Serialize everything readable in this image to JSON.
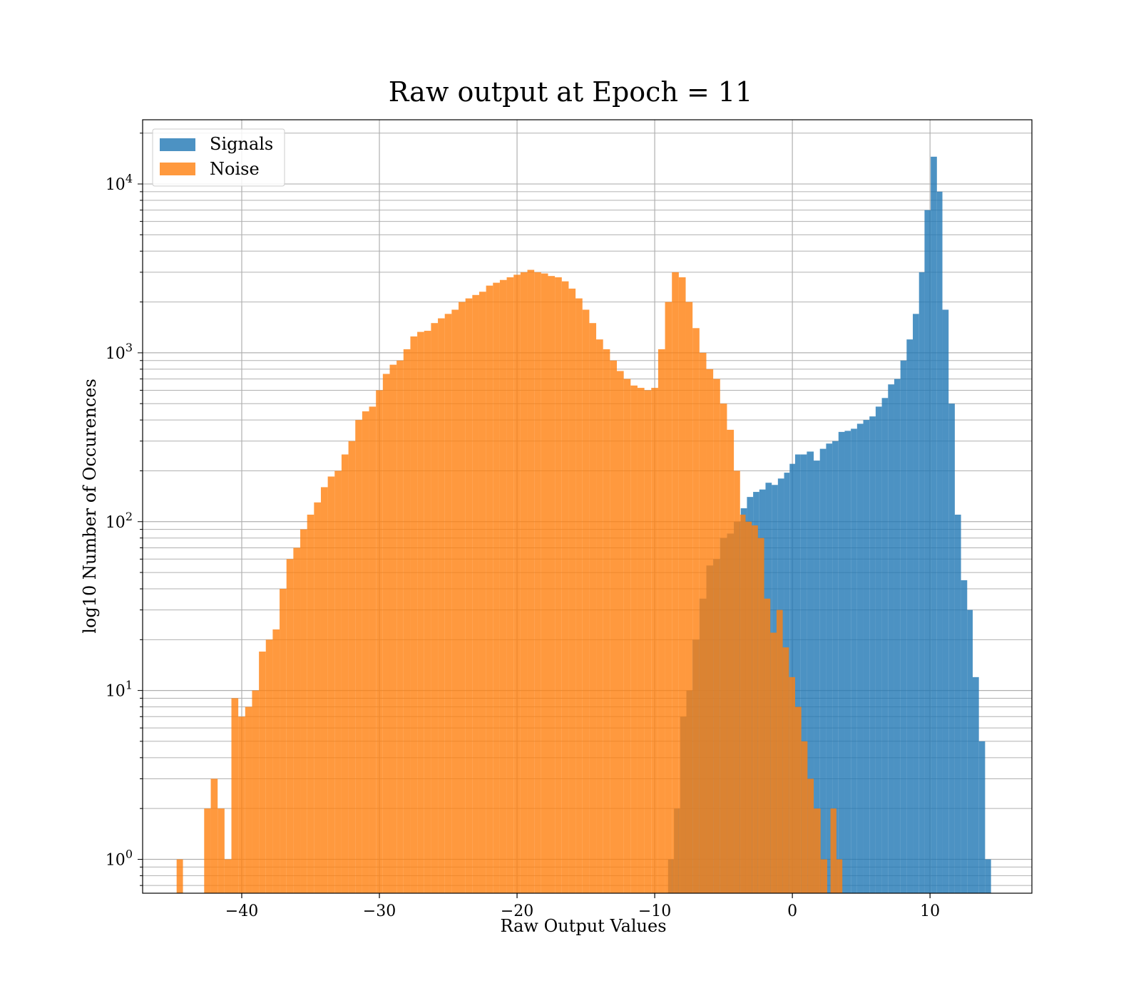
{
  "chart_data": {
    "type": "bar",
    "title": "Raw output at Epoch = 11",
    "xlabel": "Raw Output Values",
    "ylabel": "log10 Number of Occurences",
    "xlim": [
      -47.2,
      17.4
    ],
    "ylim": [
      0.63,
      24000
    ],
    "yscale": "log",
    "grid": "on (major and minor)",
    "legend_position": "top-left",
    "x_ticks": [
      -40,
      -30,
      -20,
      -10,
      0,
      10
    ],
    "x_tick_labels": [
      "−40",
      "−30",
      "−20",
      "−10",
      "0",
      "10"
    ],
    "y_ticks": [
      1,
      10,
      100,
      1000,
      10000
    ],
    "y_tick_labels": [
      {
        "base": "10",
        "exp": "0"
      },
      {
        "base": "10",
        "exp": "1"
      },
      {
        "base": "10",
        "exp": "2"
      },
      {
        "base": "10",
        "exp": "3"
      },
      {
        "base": "10",
        "exp": "4"
      }
    ],
    "series": [
      {
        "name": "Signals",
        "color": "#1f77b4",
        "bins": [
          [
            -8.8,
            1
          ],
          [
            -8.4,
            2
          ],
          [
            -7.9,
            7
          ],
          [
            -7.5,
            10
          ],
          [
            -7.0,
            20
          ],
          [
            -6.5,
            35
          ],
          [
            -6.0,
            55
          ],
          [
            -5.5,
            60
          ],
          [
            -5.0,
            80
          ],
          [
            -4.5,
            85
          ],
          [
            -4.0,
            100
          ],
          [
            -3.5,
            120
          ],
          [
            -3.1,
            140
          ],
          [
            -2.6,
            150
          ],
          [
            -2.2,
            155
          ],
          [
            -1.7,
            170
          ],
          [
            -1.3,
            165
          ],
          [
            -0.8,
            180
          ],
          [
            -0.4,
            195
          ],
          [
            0.0,
            220
          ],
          [
            0.4,
            250
          ],
          [
            0.8,
            250
          ],
          [
            1.3,
            260
          ],
          [
            1.8,
            230
          ],
          [
            2.2,
            270
          ],
          [
            2.7,
            290
          ],
          [
            3.1,
            300
          ],
          [
            3.6,
            340
          ],
          [
            4.0,
            345
          ],
          [
            4.5,
            355
          ],
          [
            4.9,
            380
          ],
          [
            5.4,
            400
          ],
          [
            5.8,
            420
          ],
          [
            6.3,
            480
          ],
          [
            6.7,
            540
          ],
          [
            7.2,
            650
          ],
          [
            7.6,
            700
          ],
          [
            8.1,
            900
          ],
          [
            8.5,
            1200
          ],
          [
            9.0,
            1700
          ],
          [
            9.4,
            3000
          ],
          [
            9.8,
            7000
          ],
          [
            10.3,
            14500
          ],
          [
            10.7,
            9000
          ],
          [
            11.1,
            1800
          ],
          [
            11.6,
            500
          ],
          [
            12.0,
            110
          ],
          [
            12.5,
            45
          ],
          [
            12.9,
            30
          ],
          [
            13.3,
            12
          ],
          [
            13.8,
            5
          ],
          [
            14.2,
            1
          ]
        ]
      },
      {
        "name": "Noise",
        "color": "#ff7f0e",
        "bins": [
          [
            -44.5,
            1
          ],
          [
            -42.5,
            2
          ],
          [
            -42.0,
            3
          ],
          [
            -41.5,
            2
          ],
          [
            -41.0,
            1
          ],
          [
            -40.5,
            9
          ],
          [
            -40.0,
            7
          ],
          [
            -39.5,
            8
          ],
          [
            -39.0,
            10
          ],
          [
            -38.5,
            17
          ],
          [
            -38.0,
            20
          ],
          [
            -37.5,
            23
          ],
          [
            -37.0,
            40
          ],
          [
            -36.5,
            60
          ],
          [
            -36.0,
            70
          ],
          [
            -35.5,
            90
          ],
          [
            -35.0,
            110
          ],
          [
            -34.5,
            130
          ],
          [
            -34.0,
            160
          ],
          [
            -33.5,
            185
          ],
          [
            -33.0,
            200
          ],
          [
            -32.5,
            250
          ],
          [
            -32.0,
            300
          ],
          [
            -31.5,
            400
          ],
          [
            -31.0,
            450
          ],
          [
            -30.5,
            480
          ],
          [
            -30.0,
            600
          ],
          [
            -29.5,
            750
          ],
          [
            -29.0,
            850
          ],
          [
            -28.5,
            900
          ],
          [
            -28.0,
            1050
          ],
          [
            -27.5,
            1250
          ],
          [
            -27.0,
            1330
          ],
          [
            -26.5,
            1350
          ],
          [
            -26.0,
            1500
          ],
          [
            -25.5,
            1600
          ],
          [
            -25.0,
            1700
          ],
          [
            -24.5,
            1800
          ],
          [
            -24.0,
            2000
          ],
          [
            -23.5,
            2100
          ],
          [
            -23.0,
            2200
          ],
          [
            -22.5,
            2300
          ],
          [
            -22.0,
            2500
          ],
          [
            -21.5,
            2600
          ],
          [
            -21.0,
            2700
          ],
          [
            -20.5,
            2800
          ],
          [
            -20.0,
            2900
          ],
          [
            -19.5,
            3000
          ],
          [
            -19.0,
            3100
          ],
          [
            -18.5,
            3000
          ],
          [
            -18.0,
            2950
          ],
          [
            -17.5,
            2850
          ],
          [
            -17.0,
            2800
          ],
          [
            -16.5,
            2650
          ],
          [
            -16.0,
            2400
          ],
          [
            -15.5,
            2100
          ],
          [
            -15.0,
            1800
          ],
          [
            -14.5,
            1500
          ],
          [
            -14.0,
            1200
          ],
          [
            -13.5,
            1050
          ],
          [
            -13.0,
            900
          ],
          [
            -12.5,
            780
          ],
          [
            -12.0,
            700
          ],
          [
            -11.5,
            640
          ],
          [
            -11.0,
            620
          ],
          [
            -10.5,
            600
          ],
          [
            -10.0,
            620
          ],
          [
            -9.5,
            1050
          ],
          [
            -9.0,
            2000
          ],
          [
            -8.5,
            3000
          ],
          [
            -8.0,
            2800
          ],
          [
            -7.5,
            2000
          ],
          [
            -7.0,
            1400
          ],
          [
            -6.5,
            1000
          ],
          [
            -6.0,
            800
          ],
          [
            -5.5,
            700
          ],
          [
            -5.0,
            500
          ],
          [
            -4.5,
            350
          ],
          [
            -4.0,
            200
          ],
          [
            -3.6,
            110
          ],
          [
            -3.2,
            100
          ],
          [
            -2.7,
            95
          ],
          [
            -2.3,
            80
          ],
          [
            -1.8,
            35
          ],
          [
            -1.4,
            22
          ],
          [
            -0.9,
            30
          ],
          [
            -0.5,
            18
          ],
          [
            0.0,
            12
          ],
          [
            0.4,
            8
          ],
          [
            0.9,
            5
          ],
          [
            1.3,
            3
          ],
          [
            1.8,
            2
          ],
          [
            2.3,
            1
          ],
          [
            3.0,
            2
          ],
          [
            3.4,
            1
          ]
        ]
      }
    ]
  }
}
